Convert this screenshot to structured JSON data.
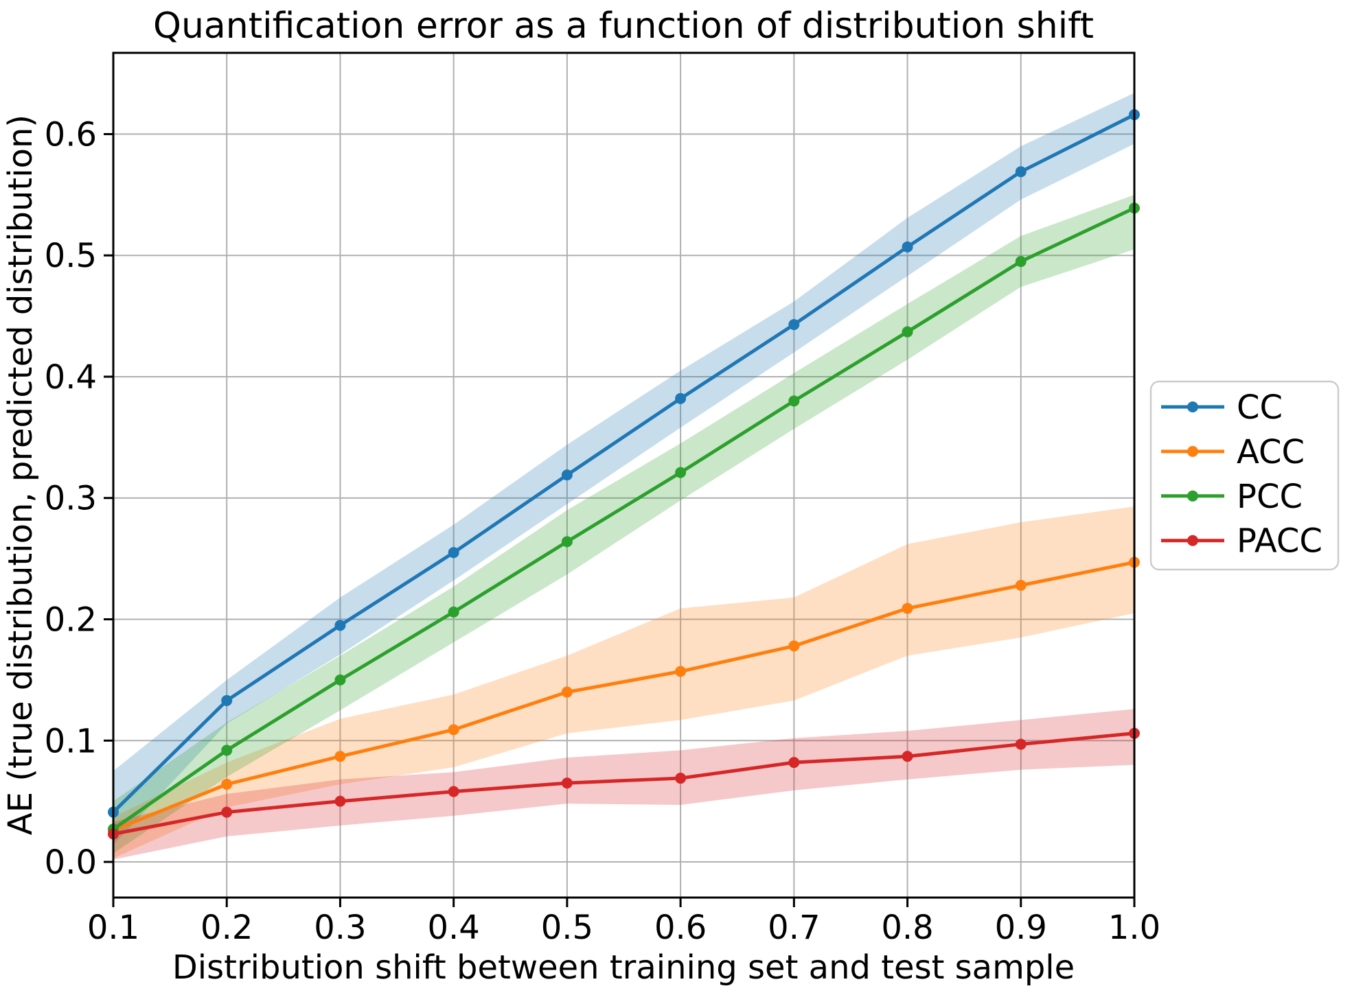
{
  "chart_data": {
    "type": "line",
    "title": "Quantification error as a function of distribution shift",
    "xlabel": "Distribution shift between training set and test sample",
    "ylabel": "AE (true distribution, predicted distribution)",
    "x": [
      0.1,
      0.2,
      0.3,
      0.4,
      0.5,
      0.6,
      0.7,
      0.8,
      0.9,
      1.0
    ],
    "xlim": [
      0.1,
      1.0
    ],
    "ylim": [
      -0.0294,
      0.667
    ],
    "xtick_values": [
      0.1,
      0.2,
      0.3,
      0.4,
      0.5,
      0.6,
      0.7,
      0.8,
      0.9,
      1.0
    ],
    "xtick_labels": [
      "0.1",
      "0.2",
      "0.3",
      "0.4",
      "0.5",
      "0.6",
      "0.7",
      "0.8",
      "0.9",
      "1.0"
    ],
    "ytick_values": [
      0.0,
      0.1,
      0.2,
      0.3,
      0.4,
      0.5,
      0.6
    ],
    "ytick_labels": [
      "0.0",
      "0.1",
      "0.2",
      "0.3",
      "0.4",
      "0.5",
      "0.6"
    ],
    "grid": true,
    "legend_position": "right-outside",
    "band_alpha": 0.25,
    "series": [
      {
        "name": "CC",
        "color": "#1f77b4",
        "values": [
          0.041,
          0.133,
          0.195,
          0.255,
          0.319,
          0.382,
          0.443,
          0.507,
          0.569,
          0.616
        ],
        "band_lower": [
          0.014,
          0.114,
          0.171,
          0.232,
          0.295,
          0.358,
          0.42,
          0.483,
          0.546,
          0.592
        ],
        "band_upper": [
          0.075,
          0.15,
          0.218,
          0.278,
          0.344,
          0.405,
          0.462,
          0.531,
          0.59,
          0.634
        ]
      },
      {
        "name": "ACC",
        "color": "#ff7f0e",
        "values": [
          0.026,
          0.064,
          0.087,
          0.109,
          0.14,
          0.157,
          0.178,
          0.209,
          0.228,
          0.247
        ],
        "band_lower": [
          0.003,
          0.045,
          0.064,
          0.078,
          0.106,
          0.117,
          0.133,
          0.17,
          0.185,
          0.205
        ],
        "band_upper": [
          0.037,
          0.082,
          0.118,
          0.138,
          0.17,
          0.209,
          0.218,
          0.262,
          0.28,
          0.293
        ]
      },
      {
        "name": "PCC",
        "color": "#2ca02c",
        "values": [
          0.027,
          0.092,
          0.15,
          0.206,
          0.264,
          0.321,
          0.38,
          0.437,
          0.495,
          0.539
        ],
        "band_lower": [
          0.007,
          0.07,
          0.125,
          0.181,
          0.237,
          0.298,
          0.357,
          0.414,
          0.474,
          0.505
        ],
        "band_upper": [
          0.05,
          0.115,
          0.17,
          0.227,
          0.29,
          0.345,
          0.403,
          0.46,
          0.516,
          0.55
        ]
      },
      {
        "name": "PACC",
        "color": "#d62728",
        "values": [
          0.023,
          0.041,
          0.05,
          0.058,
          0.065,
          0.069,
          0.082,
          0.087,
          0.097,
          0.106
        ],
        "band_lower": [
          0.002,
          0.021,
          0.03,
          0.038,
          0.048,
          0.047,
          0.059,
          0.068,
          0.076,
          0.08
        ],
        "band_upper": [
          0.033,
          0.056,
          0.068,
          0.074,
          0.086,
          0.092,
          0.102,
          0.108,
          0.117,
          0.126
        ]
      }
    ]
  },
  "colors": {
    "background": "#ffffff",
    "grid": "#b0b0b0",
    "spine": "#000000",
    "legend_border": "#cccccc"
  }
}
